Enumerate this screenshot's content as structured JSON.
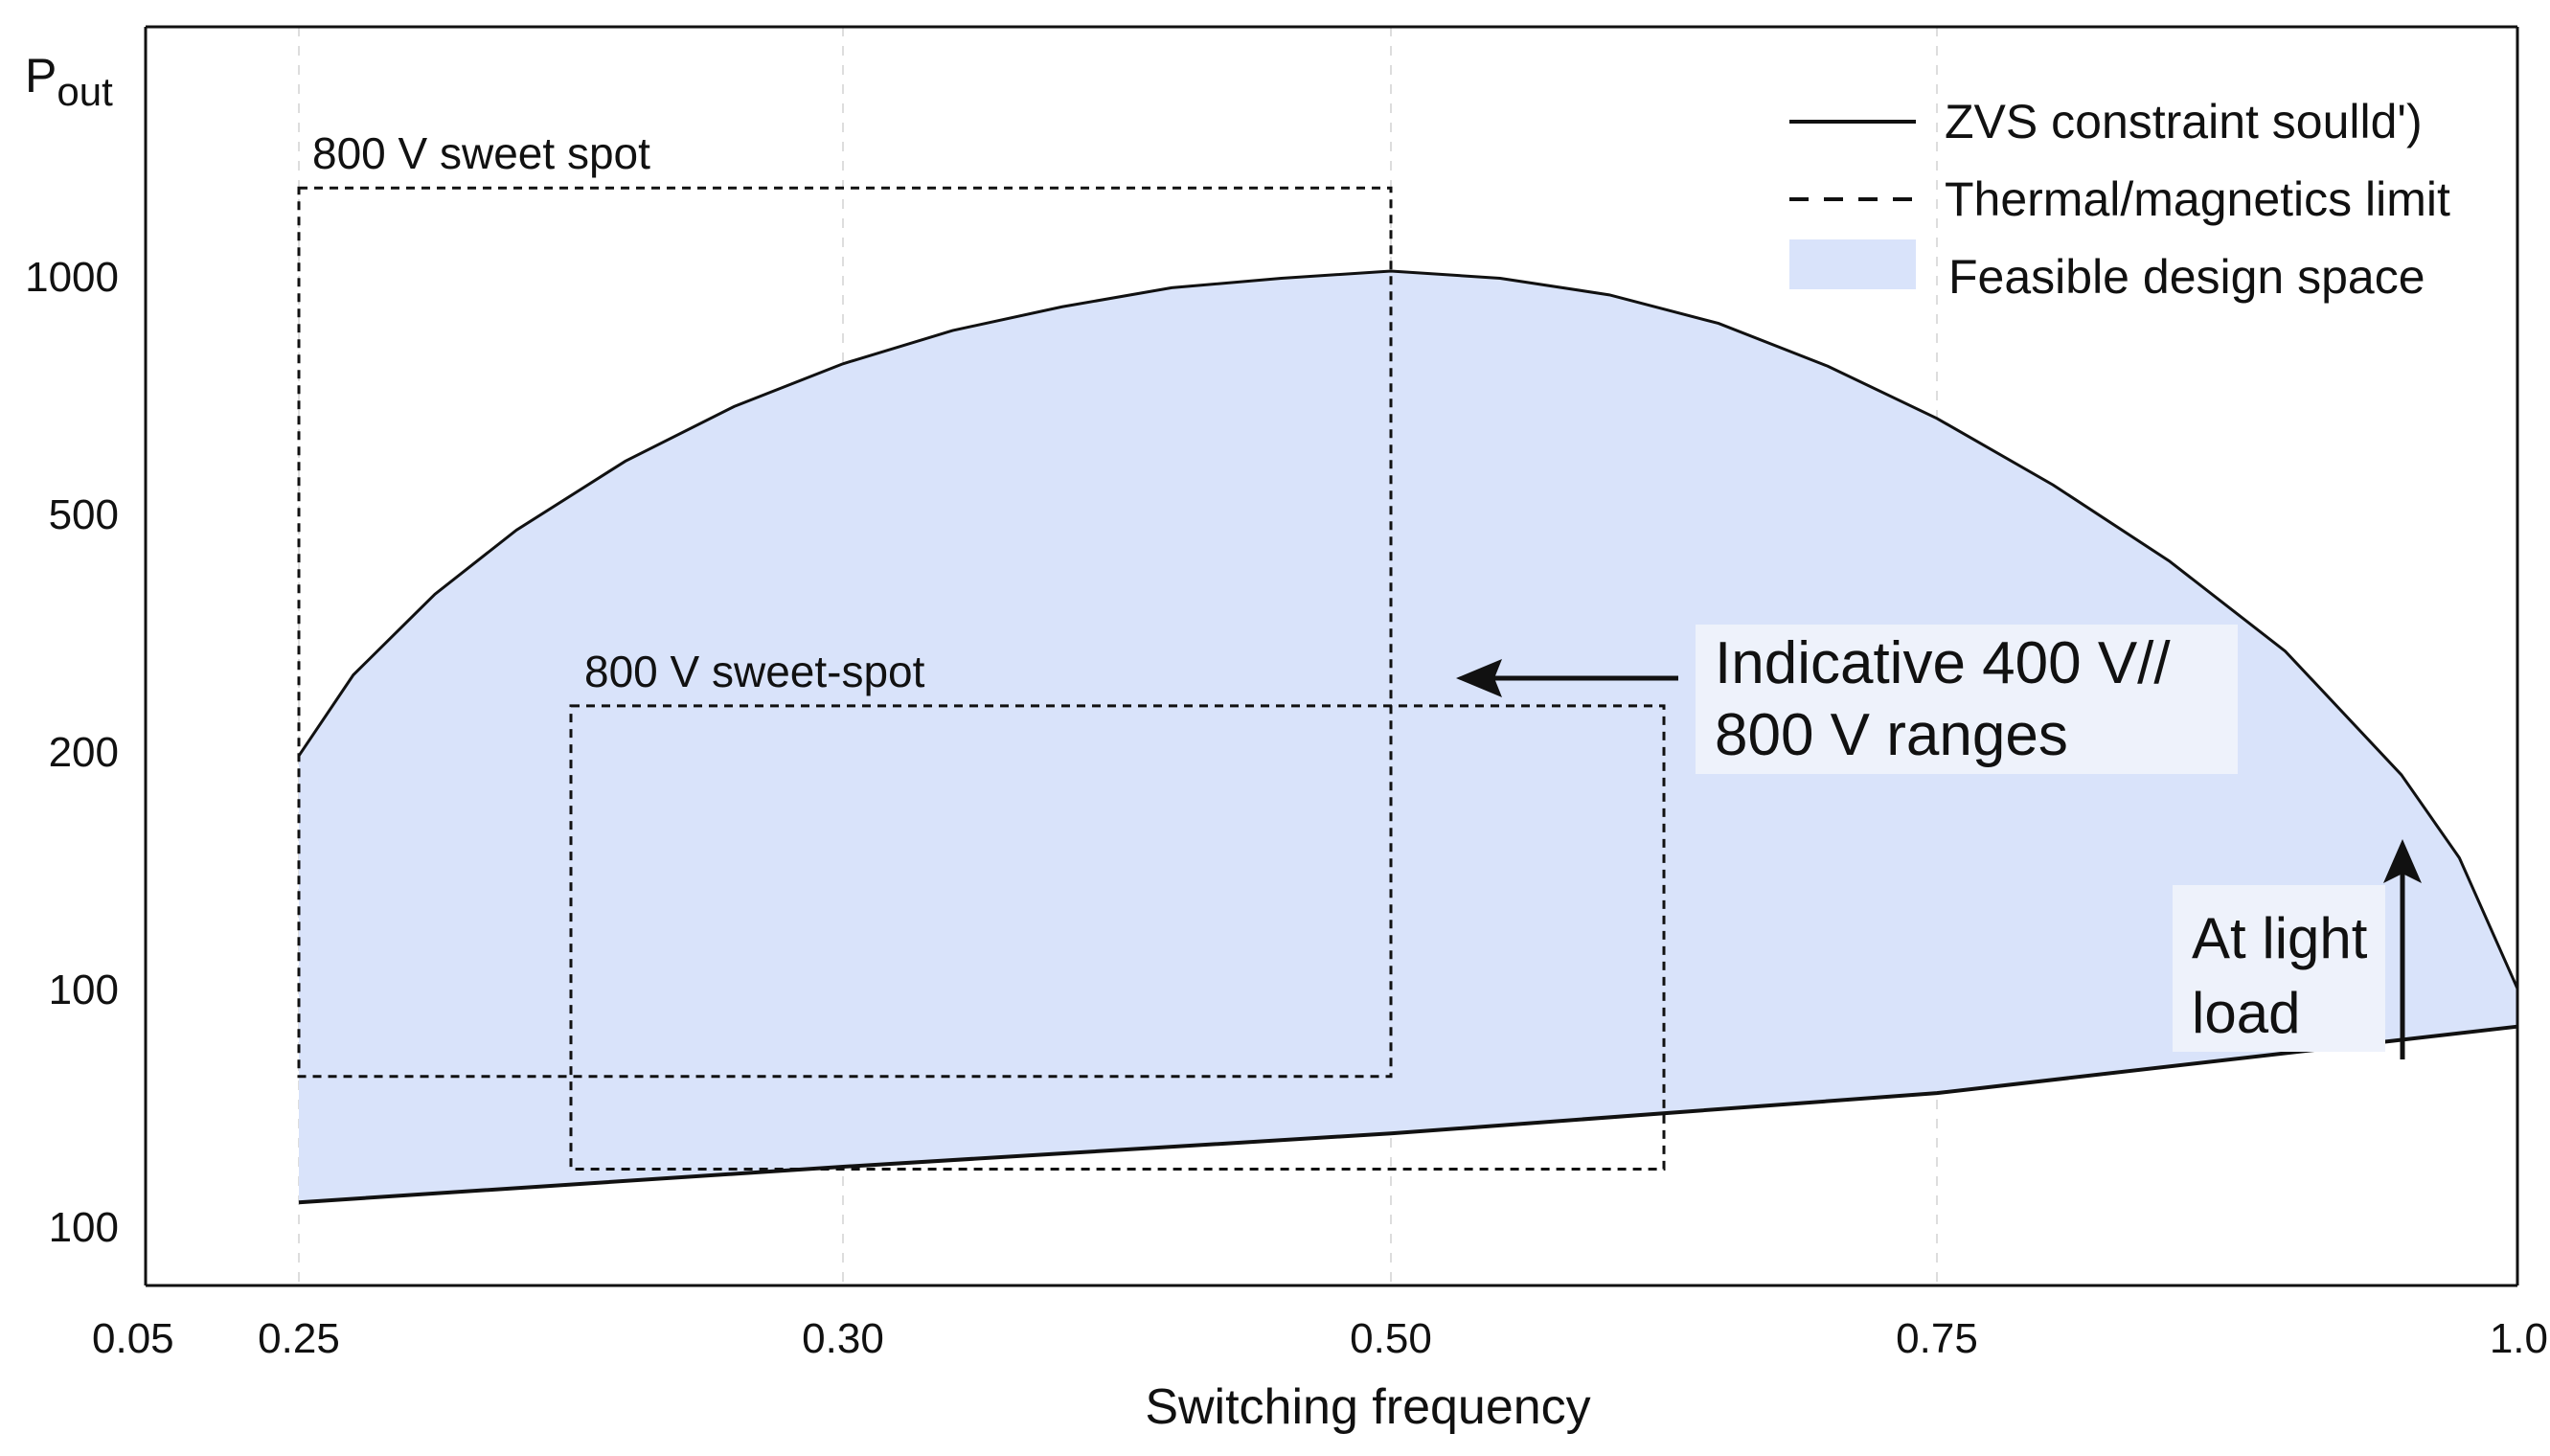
{
  "chart_data": {
    "type": "area",
    "title": "",
    "xlabel": "Switching frequency",
    "ylabel_main": "P",
    "ylabel_sub": "out",
    "x_ticks": [
      "0.05",
      "0.25",
      "0.30",
      "0.50",
      "0.75",
      "1.0"
    ],
    "y_ticks": [
      "1000",
      "500",
      "200",
      "100",
      "100"
    ],
    "y_tick_positions": [
      4,
      3,
      2,
      1,
      0
    ],
    "x_tick_positions": [
      0,
      1,
      2,
      3,
      4,
      5
    ],
    "x_range": [
      0,
      5
    ],
    "y_range": [
      -0.25,
      5.05
    ],
    "grid_x": true,
    "grid_y": false,
    "legend_position": "top-right",
    "legend": [
      {
        "label": "ZVS constraint soulld')",
        "style": "solid"
      },
      {
        "label": "Thermal/magnetics limit",
        "style": "dashed"
      },
      {
        "label": "Feasible design space",
        "style": "fill"
      }
    ],
    "series": [
      {
        "name": "ZVS constraint upper",
        "style": "solid",
        "x": [
          1.0,
          1.1,
          1.25,
          1.4,
          1.6,
          1.8,
          2.0,
          2.2,
          2.4,
          2.6,
          2.8,
          3.0,
          3.2,
          3.4,
          3.6,
          3.8,
          4.0,
          4.2,
          4.4,
          4.6,
          4.8,
          4.9,
          5.0
        ],
        "y": [
          1.98,
          2.32,
          2.66,
          2.93,
          3.22,
          3.45,
          3.63,
          3.77,
          3.87,
          3.95,
          3.99,
          4.02,
          3.99,
          3.92,
          3.8,
          3.62,
          3.4,
          3.12,
          2.8,
          2.42,
          1.9,
          1.55,
          1.0
        ]
      },
      {
        "name": "ZVS constraint lower",
        "style": "solid",
        "x": [
          1.0,
          2.0,
          3.0,
          4.0,
          5.0
        ],
        "y": [
          0.1,
          0.25,
          0.39,
          0.56,
          0.84
        ]
      }
    ],
    "regions": [
      {
        "label": "800 V sweet spot",
        "x": [
          1.0,
          3.0
        ],
        "y": [
          0.63,
          4.37
        ]
      },
      {
        "label": "800 V sweet-spot",
        "x": [
          1.5,
          3.5
        ],
        "y": [
          0.24,
          2.19
        ]
      }
    ],
    "annotations": [
      {
        "lines": [
          "Indicative 400 V//",
          "800 V ranges"
        ],
        "arrow": "left"
      },
      {
        "lines": [
          "At light",
          "load"
        ],
        "arrow": "up"
      }
    ],
    "colors": {
      "fill": "#d9e3fa",
      "line": "#111111",
      "grid": "#dddddd",
      "label_box": "#eef2fb"
    }
  }
}
